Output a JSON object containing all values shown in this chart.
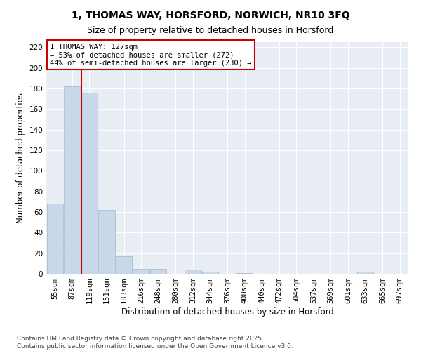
{
  "title_line1": "1, THOMAS WAY, HORSFORD, NORWICH, NR10 3FQ",
  "title_line2": "Size of property relative to detached houses in Horsford",
  "xlabel": "Distribution of detached houses by size in Horsford",
  "ylabel": "Number of detached properties",
  "categories": [
    "55sqm",
    "87sqm",
    "119sqm",
    "151sqm",
    "183sqm",
    "216sqm",
    "248sqm",
    "280sqm",
    "312sqm",
    "344sqm",
    "376sqm",
    "408sqm",
    "440sqm",
    "472sqm",
    "504sqm",
    "537sqm",
    "569sqm",
    "601sqm",
    "633sqm",
    "665sqm",
    "697sqm"
  ],
  "values": [
    68,
    182,
    176,
    62,
    17,
    5,
    5,
    0,
    4,
    2,
    0,
    1,
    0,
    0,
    0,
    0,
    0,
    0,
    2,
    0,
    0
  ],
  "bar_color": "#c8d8e8",
  "bar_edgecolor": "#a0b8cc",
  "axes_bg": "#e8eef4",
  "grid_color": "#ffffff",
  "red_line_color": "#cc0000",
  "annotation_line1": "1 THOMAS WAY: 127sqm",
  "annotation_line2": "← 53% of detached houses are smaller (272)",
  "annotation_line3": "44% of semi-detached houses are larger (230) →",
  "annotation_box_edgecolor": "#cc0000",
  "ylim": [
    0,
    225
  ],
  "yticks": [
    0,
    20,
    40,
    60,
    80,
    100,
    120,
    140,
    160,
    180,
    200,
    220
  ],
  "footnote": "Contains HM Land Registry data © Crown copyright and database right 2025.\nContains public sector information licensed under the Open Government Licence v3.0.",
  "title_fontsize": 10,
  "subtitle_fontsize": 9,
  "axis_label_fontsize": 8.5,
  "tick_fontsize": 7.5,
  "annot_fontsize": 7.5,
  "footnote_fontsize": 6.5
}
